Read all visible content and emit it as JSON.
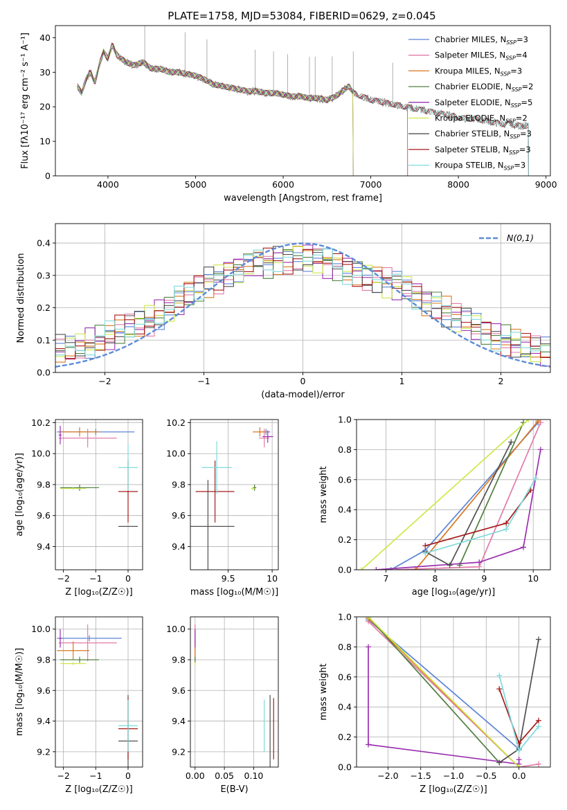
{
  "figure": {
    "title": "PLATE=1758, MJD=53084, FIBERID=0629, z=0.045"
  },
  "colors": {
    "Chabrier MILES": "#5b84d8",
    "Salpeter MILES": "#e27aa8",
    "Kroupa MILES": "#d9771f",
    "Chabrier ELODIE": "#4f7f3e",
    "Salpeter ELODIE": "#9a2fb0",
    "Kroupa ELODIE": "#cde84a",
    "Chabrier STELIB": "#505050",
    "Salpeter STELIB": "#a51a1a",
    "Kroupa STELIB": "#7fdada",
    "normal": "#5b8bd8"
  },
  "chart_data": [
    {
      "id": "spectrum",
      "type": "line",
      "xlabel": "wavelength [Angstrom, rest frame]",
      "ylabel": "Flux [fλ10⁻¹⁷ erg cm⁻² s⁻¹ A⁻¹]",
      "xlim": [
        3400,
        9050
      ],
      "ylim": [
        0,
        43.5
      ],
      "xticks": [
        4000,
        5000,
        6000,
        7000,
        8000,
        9000
      ],
      "yticks": [
        0,
        10,
        20,
        30,
        40
      ],
      "legend_position": "right",
      "observed_spectrum": {
        "x": [
          3650,
          3700,
          3750,
          3800,
          3850,
          3900,
          3950,
          4000,
          4050,
          4100,
          4200,
          4300,
          4400,
          4500,
          4600,
          4700,
          4800,
          4900,
          5000,
          5100,
          5200,
          5300,
          5400,
          5500,
          5600,
          5700,
          5800,
          5900,
          6000,
          6100,
          6200,
          6300,
          6400,
          6500,
          6600,
          6700,
          6750,
          6800,
          6900,
          7000,
          7100,
          7200,
          7300,
          7400,
          7500,
          7600,
          7700,
          7800,
          7900,
          8000,
          8100,
          8200,
          8300,
          8400,
          8500,
          8600,
          8700,
          8800
        ],
        "y": [
          26,
          24,
          28,
          30,
          27,
          32,
          36,
          34,
          38,
          35,
          33,
          32,
          33,
          31,
          31,
          30,
          30,
          29.5,
          29,
          28,
          26.5,
          26,
          25.5,
          25,
          24.5,
          24.5,
          24,
          24,
          23.5,
          23,
          23,
          22.5,
          22.5,
          22,
          23,
          25,
          26,
          24,
          23,
          22,
          21.5,
          21,
          20.5,
          20,
          19.5,
          19,
          18.5,
          18,
          17.5,
          17,
          16.5,
          16.5,
          16,
          15.5,
          15,
          15,
          14.5,
          14.5
        ]
      },
      "series": [
        {
          "name": "Chabrier MILES, N_SSP=3",
          "end_x": 7420
        },
        {
          "name": "Salpeter MILES, N_SSP=4",
          "end_x": 7420
        },
        {
          "name": "Kroupa MILES, N_SSP=3",
          "end_x": 7420
        },
        {
          "name": "Chabrier ELODIE, N_SSP=2",
          "end_x": 6800
        },
        {
          "name": "Salpeter ELODIE, N_SSP=5",
          "end_x": 6800
        },
        {
          "name": "Kroupa ELODIE, N_SSP=2",
          "end_x": 6800
        },
        {
          "name": "Chabrier STELIB, N_SSP=3",
          "end_x": 8800
        },
        {
          "name": "Salpeter STELIB, N_SSP=3",
          "end_x": 8800
        },
        {
          "name": "Kroupa STELIB, N_SSP=3",
          "end_x": 8800
        }
      ]
    },
    {
      "id": "residuals",
      "type": "line",
      "xlabel": "(data-model)/error",
      "ylabel": "Normed distribution",
      "xlim": [
        -2.5,
        2.5
      ],
      "ylim": [
        0,
        0.46
      ],
      "xticks": [
        -2,
        -1,
        0,
        1,
        2
      ],
      "yticks": [
        0.0,
        0.1,
        0.2,
        0.3,
        0.4
      ],
      "grid": true,
      "legend_position": "top-right",
      "normal_label": "N(0,1)",
      "bin_edges_start": -2.5,
      "bin_width": 0.1,
      "histogram_envelope": [
        0.07,
        0.07,
        0.08,
        0.09,
        0.1,
        0.11,
        0.13,
        0.14,
        0.15,
        0.16,
        0.18,
        0.2,
        0.22,
        0.24,
        0.26,
        0.28,
        0.29,
        0.31,
        0.32,
        0.33,
        0.34,
        0.34,
        0.35,
        0.35,
        0.36,
        0.36,
        0.35,
        0.34,
        0.33,
        0.32,
        0.31,
        0.3,
        0.29,
        0.28,
        0.27,
        0.26,
        0.24,
        0.22,
        0.21,
        0.19,
        0.17,
        0.16,
        0.14,
        0.13,
        0.11,
        0.1,
        0.09,
        0.08,
        0.07,
        0.06
      ]
    },
    {
      "id": "age-vs-Z",
      "type": "scatter",
      "xlabel": "Z [log₁₀(Z/Z☉)]",
      "ylabel": "age  [log₁₀(age/yr)]",
      "xlim": [
        -2.25,
        0.45
      ],
      "ylim": [
        9.25,
        10.22
      ],
      "xticks": [
        -2,
        -1,
        0
      ],
      "yticks": [
        9.4,
        9.6,
        9.8,
        10.0,
        10.2
      ],
      "grid": true,
      "points": [
        {
          "model": "Chabrier MILES",
          "x": -1.0,
          "xerr": 1.2,
          "y": 10.14,
          "yerr": 0.02
        },
        {
          "model": "Salpeter MILES",
          "x": -1.25,
          "xerr": 0.9,
          "y": 10.1,
          "yerr": 0.06
        },
        {
          "model": "Kroupa MILES",
          "x": -1.5,
          "xerr": 0.6,
          "y": 10.14,
          "yerr": 0.03
        },
        {
          "model": "Chabrier ELODIE",
          "x": -1.5,
          "xerr": 0.6,
          "y": 9.78,
          "yerr": 0.02
        },
        {
          "model": "Salpeter ELODIE",
          "x": -2.1,
          "xerr": 0.05,
          "y": 10.12,
          "yerr": 0.06
        },
        {
          "model": "Kroupa ELODIE",
          "x": -1.7,
          "xerr": 0.4,
          "y": 9.775,
          "yerr": 0.01
        },
        {
          "model": "Chabrier STELIB",
          "x": 0.0,
          "xerr": 0.3,
          "y": 9.53,
          "yerr": 0.0
        },
        {
          "model": "Salpeter STELIB",
          "x": 0.0,
          "xerr": 0.3,
          "y": 9.755,
          "yerr": 0.2
        },
        {
          "model": "Kroupa STELIB",
          "x": 0.0,
          "xerr": 0.3,
          "y": 9.91,
          "yerr": 0.15
        }
      ]
    },
    {
      "id": "age-vs-mass",
      "type": "scatter",
      "xlabel": "mass [log₁₀(M/M☉)]",
      "xlim": [
        9.07,
        10.07
      ],
      "ylim": [
        9.25,
        10.22
      ],
      "xticks": [
        9.5,
        10.0
      ],
      "yticks": [
        9.4,
        9.6,
        9.8,
        10.0,
        10.2
      ],
      "grid": true,
      "points": [
        {
          "model": "Chabrier MILES",
          "x": 9.93,
          "xerr": 0.05,
          "y": 10.14,
          "yerr": 0.02
        },
        {
          "model": "Salpeter MILES",
          "x": 9.91,
          "xerr": 0.06,
          "y": 10.1,
          "yerr": 0.06
        },
        {
          "model": "Kroupa MILES",
          "x": 9.86,
          "xerr": 0.08,
          "y": 10.14,
          "yerr": 0.03
        },
        {
          "model": "Chabrier ELODIE",
          "x": 9.8,
          "xerr": 0.02,
          "y": 9.78,
          "yerr": 0.02
        },
        {
          "model": "Salpeter ELODIE",
          "x": 9.95,
          "xerr": 0.06,
          "y": 10.11,
          "yerr": 0.04
        },
        {
          "model": "Kroupa ELODIE",
          "x": 9.78,
          "xerr": 0.02,
          "y": 9.775,
          "yerr": 0.01
        },
        {
          "model": "Chabrier STELIB",
          "x": 9.27,
          "xerr": 0.3,
          "y": 9.53,
          "yerr": 0.3
        },
        {
          "model": "Salpeter STELIB",
          "x": 9.35,
          "xerr": 0.22,
          "y": 9.755,
          "yerr": 0.2
        },
        {
          "model": "Kroupa STELIB",
          "x": 9.37,
          "xerr": 0.17,
          "y": 9.91,
          "yerr": 0.17
        }
      ]
    },
    {
      "id": "mass-weight-vs-age",
      "type": "line",
      "xlabel": "age  [log₁₀(age/yr)]",
      "ylabel": "mass weight",
      "xlim": [
        6.4,
        10.35
      ],
      "ylim": [
        0,
        1.0
      ],
      "xticks": [
        7,
        8,
        9,
        10
      ],
      "yticks": [
        0.0,
        0.2,
        0.4,
        0.6,
        0.8,
        1.0
      ],
      "grid": true,
      "series": [
        {
          "model": "Chabrier MILES",
          "x": [
            7.1,
            7.8,
            10.1
          ],
          "y": [
            0.0,
            0.13,
            0.98
          ]
        },
        {
          "model": "Salpeter MILES",
          "x": [
            7.2,
            8.9,
            10.15
          ],
          "y": [
            0.0,
            0.02,
            0.98
          ]
        },
        {
          "model": "Kroupa MILES",
          "x": [
            7.6,
            10.1
          ],
          "y": [
            0.0,
            0.99
          ]
        },
        {
          "model": "Chabrier ELODIE",
          "x": [
            8.5,
            9.8
          ],
          "y": [
            0.03,
            0.98
          ]
        },
        {
          "model": "Salpeter ELODIE",
          "x": [
            6.8,
            8.9,
            9.8,
            10.15
          ],
          "y": [
            0.0,
            0.05,
            0.15,
            0.8
          ]
        },
        {
          "model": "Kroupa ELODIE",
          "x": [
            6.5,
            9.9
          ],
          "y": [
            0.0,
            1.0
          ]
        },
        {
          "model": "Chabrier STELIB",
          "x": [
            7.8,
            8.3,
            9.55
          ],
          "y": [
            0.12,
            0.03,
            0.85
          ]
        },
        {
          "model": "Salpeter STELIB",
          "x": [
            7.8,
            9.45,
            9.95
          ],
          "y": [
            0.16,
            0.31,
            0.53
          ]
        },
        {
          "model": "Kroupa STELIB",
          "x": [
            7.8,
            9.45,
            10.05
          ],
          "y": [
            0.11,
            0.27,
            0.61
          ]
        }
      ]
    },
    {
      "id": "mass-vs-Z",
      "type": "scatter",
      "xlabel": "Z [log₁₀(Z/Z☉)]",
      "ylabel": "mass [log₁₀(M/M☉)]",
      "xlim": [
        -2.25,
        0.45
      ],
      "ylim": [
        9.1,
        10.08
      ],
      "xticks": [
        -2,
        -1,
        0
      ],
      "yticks": [
        9.2,
        9.4,
        9.6,
        9.8,
        10.0
      ],
      "grid": true,
      "points": [
        {
          "model": "Chabrier MILES",
          "x": -1.2,
          "xerr": 1.0,
          "y": 9.94,
          "yerr": 0.02
        },
        {
          "model": "Salpeter MILES",
          "x": -1.25,
          "xerr": 0.9,
          "y": 9.91,
          "yerr": 0.12
        },
        {
          "model": "Kroupa MILES",
          "x": -1.7,
          "xerr": 0.5,
          "y": 9.86,
          "yerr": 0.06
        },
        {
          "model": "Chabrier ELODIE",
          "x": -1.5,
          "xerr": 0.6,
          "y": 9.8,
          "yerr": 0.02
        },
        {
          "model": "Salpeter ELODIE",
          "x": -2.1,
          "xerr": 0.05,
          "y": 9.94,
          "yerr": 0.06
        },
        {
          "model": "Kroupa ELODIE",
          "x": -1.7,
          "xerr": 0.4,
          "y": 9.775,
          "yerr": 0.01
        },
        {
          "model": "Chabrier STELIB",
          "x": 0.0,
          "xerr": 0.3,
          "y": 9.27,
          "yerr": 0.3
        },
        {
          "model": "Salpeter STELIB",
          "x": 0.0,
          "xerr": 0.3,
          "y": 9.35,
          "yerr": 0.2
        },
        {
          "model": "Kroupa STELIB",
          "x": 0.0,
          "xerr": 0.3,
          "y": 9.37,
          "yerr": 0.17
        }
      ]
    },
    {
      "id": "mass-vs-ebv",
      "type": "scatter",
      "xlabel": "E(B-V)",
      "xlim": [
        -0.008,
        0.142
      ],
      "ylim": [
        9.1,
        10.08
      ],
      "xticks": [
        0.0,
        0.05,
        0.1
      ],
      "xtick_labels": [
        "0.00",
        "0.05",
        "0.10"
      ],
      "yticks": [
        9.2,
        9.4,
        9.6,
        9.8,
        10.0
      ],
      "grid": true,
      "points": [
        {
          "model": "Chabrier MILES",
          "x": 0.0,
          "y": 9.94,
          "yerr": 0.03
        },
        {
          "model": "Salpeter MILES",
          "x": 0.0,
          "y": 9.91,
          "yerr": 0.12
        },
        {
          "model": "Kroupa MILES",
          "x": 0.0,
          "y": 9.86,
          "yerr": 0.06
        },
        {
          "model": "Chabrier ELODIE",
          "x": 0.0,
          "y": 9.8,
          "yerr": 0.02
        },
        {
          "model": "Salpeter ELODIE",
          "x": 0.0,
          "y": 9.94,
          "yerr": 0.06
        },
        {
          "model": "Kroupa ELODIE",
          "x": 0.0,
          "y": 9.775,
          "yerr": 0.01
        },
        {
          "model": "Chabrier STELIB",
          "x": 0.128,
          "y": 9.27,
          "yerr": 0.3
        },
        {
          "model": "Salpeter STELIB",
          "x": 0.134,
          "y": 9.35,
          "yerr": 0.2
        },
        {
          "model": "Kroupa STELIB",
          "x": 0.118,
          "y": 9.37,
          "yerr": 0.17
        }
      ]
    },
    {
      "id": "mass-weight-vs-Z",
      "type": "line",
      "xlabel": "Z [log₁₀(Z/Z☉)]",
      "ylabel": "mass weight",
      "xlim": [
        -2.48,
        0.48
      ],
      "ylim": [
        0,
        1.0
      ],
      "xticks": [
        -2.0,
        -1.5,
        -1.0,
        -0.5,
        0.0
      ],
      "xtick_labels": [
        "−2.0",
        "−1.5",
        "−1.0",
        "−0.5",
        "0.0"
      ],
      "yticks": [
        0.0,
        0.2,
        0.4,
        0.6,
        0.8,
        1.0
      ],
      "grid": true,
      "series": [
        {
          "model": "Chabrier MILES",
          "x": [
            -2.3,
            0.0
          ],
          "y": [
            0.98,
            0.12
          ]
        },
        {
          "model": "Salpeter MILES",
          "x": [
            -2.3,
            0.0,
            0.3
          ],
          "y": [
            0.97,
            0.0,
            0.02
          ]
        },
        {
          "model": "Kroupa MILES",
          "x": [
            -2.3,
            0.0
          ],
          "y": [
            0.99,
            0.0
          ]
        },
        {
          "model": "Chabrier ELODIE",
          "x": [
            -2.3,
            -0.3
          ],
          "y": [
            1.0,
            0.03
          ]
        },
        {
          "model": "Salpeter ELODIE",
          "x": [
            -2.3,
            -2.3,
            0.0,
            0.0
          ],
          "y": [
            0.8,
            0.15,
            0.02,
            0.05
          ]
        },
        {
          "model": "Kroupa ELODIE",
          "x": [
            -2.3,
            0.0
          ],
          "y": [
            1.0,
            0.0
          ]
        },
        {
          "model": "Chabrier STELIB",
          "x": [
            -0.3,
            0.0,
            0.3
          ],
          "y": [
            0.03,
            0.12,
            0.85
          ]
        },
        {
          "model": "Salpeter STELIB",
          "x": [
            -0.3,
            0.0,
            0.3
          ],
          "y": [
            0.52,
            0.16,
            0.31
          ]
        },
        {
          "model": "Kroupa STELIB",
          "x": [
            -0.3,
            0.0,
            0.3
          ],
          "y": [
            0.61,
            0.11,
            0.27
          ]
        }
      ]
    }
  ]
}
